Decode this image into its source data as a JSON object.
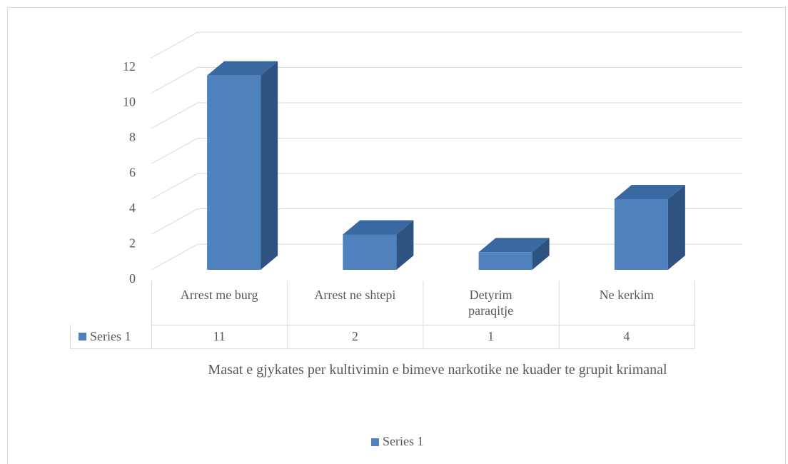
{
  "chart_data": {
    "type": "bar3d",
    "x_label": "Masat e gjykates per kultivimin e bimeve narkotike ne kuader te grupit krimanal",
    "categories": [
      "Arrest me burg",
      "Arrest ne shtepi",
      "Detyrim paraqitje",
      "Ne kerkim"
    ],
    "series": [
      {
        "name": "Series 1",
        "color": "#4f81bd",
        "values": [
          11,
          2,
          1,
          4
        ]
      }
    ],
    "ylim": [
      0,
      12
    ],
    "yticks": [
      0,
      2,
      4,
      6,
      8,
      10,
      12
    ],
    "grid": true,
    "legend": "bottom",
    "data_table": true
  }
}
